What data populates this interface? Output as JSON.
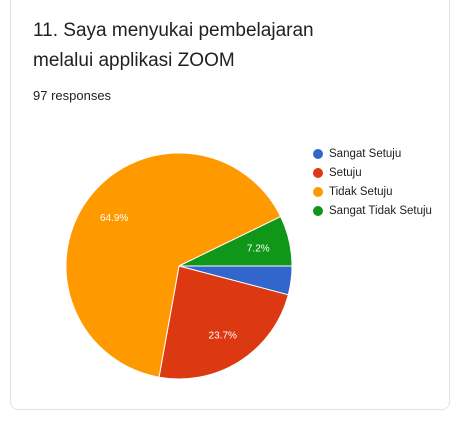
{
  "form": {
    "question_title": "11. Saya menyukai pembelajaran melalui applikasi ZOOM",
    "responses_label": "97 responses"
  },
  "chart_data": {
    "type": "pie",
    "categories": [
      "Sangat Setuju",
      "Setuju",
      "Tidak Setuju",
      "Sangat Tidak Setuju"
    ],
    "values": [
      4.1,
      23.7,
      64.9,
      7.2
    ],
    "value_labels": [
      "",
      "23.7%",
      "64.9%",
      "7.2%"
    ],
    "colors": [
      "#3366cc",
      "#dc3912",
      "#ff9900",
      "#109618"
    ],
    "legend_position": "right",
    "title": "11. Saya menyukai pembelajaran melalui applikasi ZOOM"
  }
}
